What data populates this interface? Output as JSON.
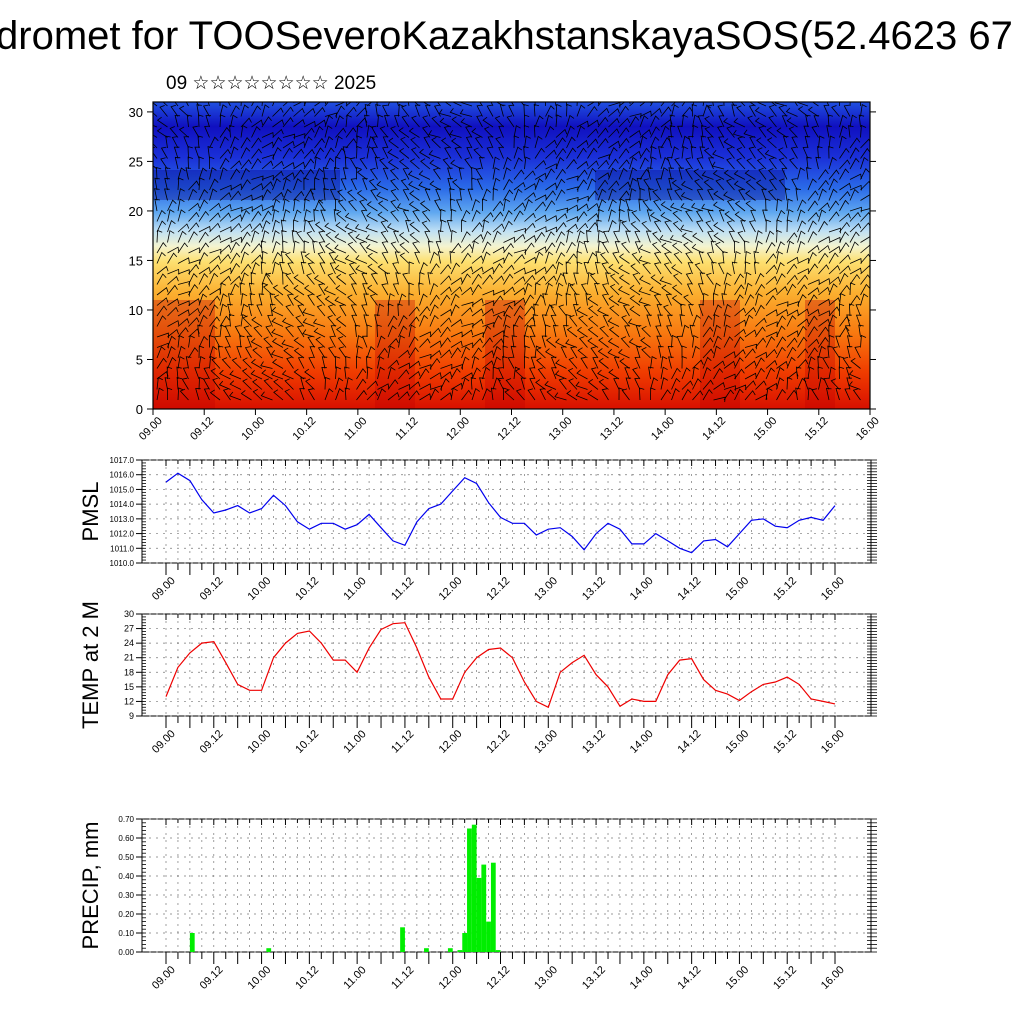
{
  "header": {
    "title": "dromet for TOOSeveroKazakhstanskayaSOS(52.4623 67",
    "date": "09 ☆☆☆☆☆☆☆☆ 2025"
  },
  "colors": {
    "pmsl_line": "#0000ee",
    "temp_line": "#ee0000",
    "precip_bar": "#00ee00",
    "cross_section_top": "#1a1acc",
    "cross_section_bottom": "#e83000"
  },
  "chart_data": [
    {
      "type": "heatmap",
      "name": "cross-section",
      "xlabel": "",
      "ylabel": "",
      "x_ticks": [
        "09.00",
        "09.12",
        "10.00",
        "10.12",
        "11.00",
        "11.12",
        "12.00",
        "12.12",
        "13.00",
        "13.12",
        "14.00",
        "14.12",
        "15.00",
        "15.12",
        "16.00"
      ],
      "ylim": [
        0,
        31
      ],
      "y_ticks": [
        0,
        5,
        10,
        15,
        20,
        25,
        30
      ],
      "description_colors": "red near surface grading through orange/yellow to light blue around 17-19 and deep blue above 22, with wind barbs overlaid"
    },
    {
      "type": "line",
      "ylabel": "PMSL",
      "x_ticks": [
        "09.00",
        "09.12",
        "10.00",
        "10.12",
        "11.00",
        "11.12",
        "12.00",
        "12.12",
        "13.00",
        "13.12",
        "14.00",
        "14.12",
        "15.00",
        "15.12",
        "16.00"
      ],
      "ylim": [
        1010.0,
        1017.0
      ],
      "y_ticks": [
        "1010.0",
        "1011.0",
        "1012.0",
        "1013.0",
        "1014.0",
        "1015.0",
        "1016.0",
        "1017.0"
      ],
      "grid": true,
      "values": [
        1015.5,
        1016.1,
        1015.6,
        1014.3,
        1013.4,
        1013.6,
        1013.9,
        1013.4,
        1013.7,
        1014.6,
        1013.9,
        1012.8,
        1012.3,
        1012.7,
        1012.7,
        1012.3,
        1012.6,
        1013.3,
        1012.4,
        1011.5,
        1011.2,
        1012.8,
        1013.7,
        1014.0,
        1014.9,
        1015.8,
        1015.4,
        1014.1,
        1013.1,
        1012.7,
        1012.7,
        1011.9,
        1012.3,
        1012.4,
        1011.8,
        1010.9,
        1012.0,
        1012.7,
        1012.3,
        1011.3,
        1011.3,
        1012.0,
        1011.5,
        1011.0,
        1010.7,
        1011.5,
        1011.6,
        1011.1,
        1012.0,
        1012.9,
        1013.0,
        1012.5,
        1012.4,
        1012.9,
        1013.1,
        1012.9,
        1013.9
      ]
    },
    {
      "type": "line",
      "ylabel": "TEMP at 2 M",
      "x_ticks": [
        "09.00",
        "09.12",
        "10.00",
        "10.12",
        "11.00",
        "11.12",
        "12.00",
        "12.12",
        "13.00",
        "13.12",
        "14.00",
        "14.12",
        "15.00",
        "15.12",
        "16.00"
      ],
      "ylim": [
        9,
        30
      ],
      "y_ticks": [
        9,
        12,
        15,
        18,
        21,
        24,
        27,
        30
      ],
      "grid": true,
      "values": [
        13,
        19,
        22,
        24,
        24.3,
        20,
        15.5,
        14.3,
        14.3,
        21,
        24,
        26,
        26.5,
        24,
        20.5,
        20.5,
        18,
        23,
        26.8,
        28,
        28.2,
        23,
        17,
        12.5,
        12.5,
        18,
        21,
        22.7,
        23,
        21,
        16,
        12,
        10.8,
        18,
        20,
        21.5,
        17.5,
        15,
        11,
        12.5,
        12,
        12,
        17.5,
        20.5,
        20.8,
        16.5,
        14.3,
        13.5,
        12.2,
        14,
        15.5,
        16,
        17,
        15.5,
        12.5,
        12,
        11.5
      ]
    },
    {
      "type": "bar",
      "ylabel": "PRECIP, mm",
      "x_ticks": [
        "09.00",
        "09.12",
        "10.00",
        "10.12",
        "11.00",
        "11.12",
        "12.00",
        "12.12",
        "13.00",
        "13.12",
        "14.00",
        "14.12",
        "15.00",
        "15.12",
        "16.00"
      ],
      "ylim": [
        0,
        0.7
      ],
      "y_ticks": [
        "0.00",
        "0.10",
        "0.20",
        "0.30",
        "0.40",
        "0.50",
        "0.60",
        "0.70"
      ],
      "grid": true,
      "values": [
        0,
        0,
        0,
        0,
        0,
        0.1,
        0,
        0,
        0,
        0,
        0,
        0,
        0,
        0,
        0,
        0,
        0,
        0,
        0,
        0,
        0,
        0.02,
        0,
        0,
        0,
        0,
        0,
        0,
        0,
        0,
        0,
        0,
        0,
        0,
        0,
        0,
        0,
        0,
        0,
        0,
        0,
        0,
        0,
        0,
        0,
        0,
        0,
        0,
        0,
        0.13,
        0,
        0,
        0,
        0,
        0.02,
        0,
        0,
        0,
        0,
        0.02,
        0,
        0.01,
        0.1,
        0.65,
        0.67,
        0.39,
        0.46,
        0.16,
        0.47,
        0.01
      ]
    }
  ]
}
